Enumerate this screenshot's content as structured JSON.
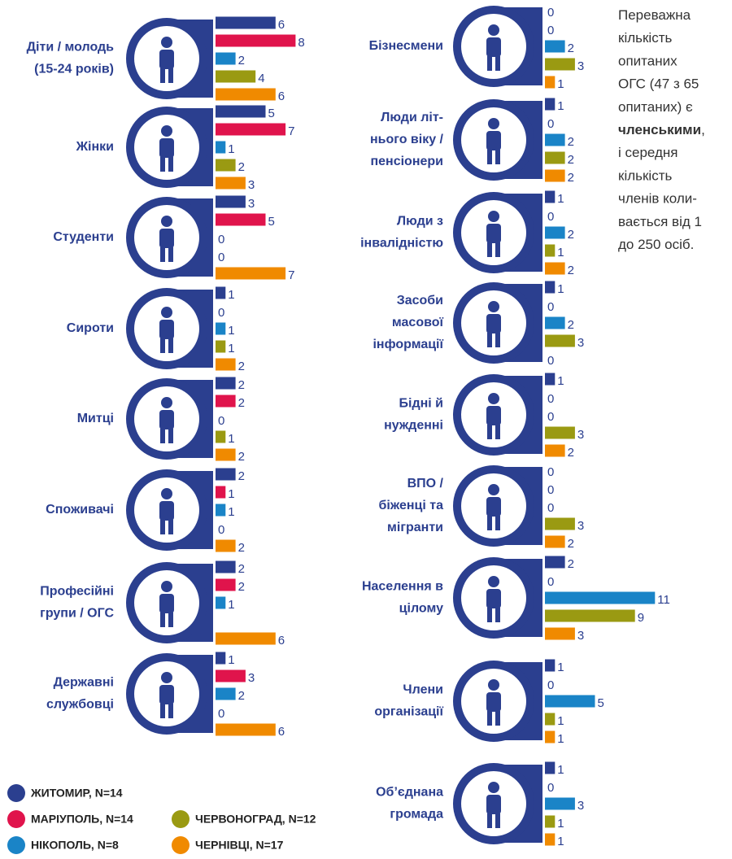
{
  "chart_data": {
    "type": "bar",
    "categories": [
      [
        "Діти / молодь",
        "(15-24 років)"
      ],
      [
        "Жінки"
      ],
      [
        "Студенти"
      ],
      [
        "Сироти"
      ],
      [
        "Митці"
      ],
      [
        "Споживачі"
      ],
      [
        "Професійні",
        "групи / ОГС"
      ],
      [
        "Державні",
        "службовці"
      ],
      [
        "Бізнесмени"
      ],
      [
        "Люди літ-",
        "нього віку /",
        "пенсіонери"
      ],
      [
        "Люди з",
        "інвалідністю"
      ],
      [
        "Засоби",
        "масової",
        "інформації"
      ],
      [
        "Бідні й",
        "нужденні"
      ],
      [
        "ВПО /",
        "біженці та",
        "мігранти"
      ],
      [
        "Населення в",
        "цілому"
      ],
      [
        "Члени",
        "організації"
      ],
      [
        "Об’єднана",
        "громада"
      ]
    ],
    "series": [
      {
        "name": "ЖИТОМИР, N=14",
        "color": "#2b3f8f",
        "values": [
          6,
          5,
          3,
          1,
          2,
          2,
          2,
          1,
          0,
          1,
          1,
          1,
          1,
          0,
          2,
          1,
          1
        ]
      },
      {
        "name": "МАРІУПОЛЬ, N=14",
        "color": "#e0144c",
        "values": [
          8,
          7,
          5,
          0,
          2,
          1,
          2,
          3,
          0,
          0,
          0,
          0,
          0,
          0,
          0,
          0,
          0
        ]
      },
      {
        "name": "НІКОПОЛЬ, N=8",
        "color": "#1a84c7",
        "values": [
          2,
          1,
          0,
          1,
          0,
          1,
          1,
          2,
          2,
          2,
          2,
          2,
          0,
          0,
          11,
          5,
          3
        ]
      },
      {
        "name": "ЧЕРВОНОГРАД, N=12",
        "color": "#9a9a12",
        "values": [
          4,
          2,
          0,
          1,
          1,
          0,
          null,
          0,
          3,
          2,
          1,
          3,
          3,
          3,
          9,
          1,
          1
        ]
      },
      {
        "name": "ЧЕРНІВЦІ, N=17",
        "color": "#f08a00",
        "values": [
          6,
          3,
          7,
          2,
          2,
          2,
          6,
          6,
          1,
          2,
          2,
          0,
          2,
          2,
          3,
          1,
          1
        ]
      }
    ],
    "note": [
      [
        {
          "text": "Переважна"
        }
      ],
      [
        {
          "text": "кількість"
        }
      ],
      [
        {
          "text": "опитаних"
        }
      ],
      [
        {
          "text": "ОГС (47 з 65"
        }
      ],
      [
        {
          "text": "опитаних) є"
        }
      ],
      [
        {
          "text": "членськими",
          "bold": true
        },
        {
          "text": ","
        }
      ],
      [
        {
          "text": "і середня"
        }
      ],
      [
        {
          "text": "кількість"
        }
      ],
      [
        {
          "text": "членів коли-"
        }
      ],
      [
        {
          "text": "вається від 1"
        }
      ],
      [
        {
          "text": "до 250 осіб."
        }
      ]
    ]
  }
}
